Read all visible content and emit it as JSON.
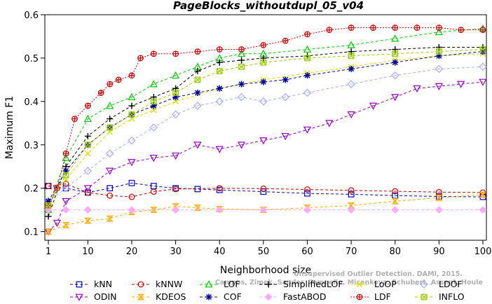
{
  "chart_data": {
    "type": "line",
    "title": "PageBlocks_withoutdupl_05_v04",
    "xlabel": "Neighborhood size",
    "ylabel": "Maximum F1",
    "xlim": [
      1,
      100
    ],
    "ylim": [
      0.08,
      0.6
    ],
    "xticks": [
      1,
      10,
      20,
      30,
      40,
      50,
      60,
      70,
      80,
      90,
      100
    ],
    "yticks": [
      0.1,
      0.2,
      0.3,
      0.4,
      0.5,
      0.6
    ],
    "grid": false,
    "legend_position": "bottom",
    "watermark_lines": [
      "Unsupervised Outlier Detection. DAMI, 2015.",
      "Campos, Zimek, Sander, Campello, Micenkova, Schubert, Assent, Houle"
    ],
    "series": [
      {
        "name": "kNN",
        "color": "#0000cc",
        "marker": "square",
        "dash": "4,3",
        "x": [
          1,
          5,
          10,
          15,
          20,
          25,
          30,
          35,
          40,
          50,
          60,
          70,
          80,
          90,
          100
        ],
        "y": [
          0.205,
          0.2,
          0.19,
          0.2,
          0.212,
          0.205,
          0.2,
          0.198,
          0.196,
          0.192,
          0.188,
          0.186,
          0.183,
          0.181,
          0.18
        ]
      },
      {
        "name": "kNNW",
        "color": "#cc0000",
        "marker": "circle",
        "dash": "4,3",
        "x": [
          1,
          5,
          10,
          15,
          20,
          25,
          30,
          40,
          50,
          60,
          70,
          80,
          90,
          100
        ],
        "y": [
          0.205,
          0.21,
          0.19,
          0.183,
          0.18,
          0.192,
          0.198,
          0.2,
          0.199,
          0.197,
          0.195,
          0.193,
          0.191,
          0.19
        ]
      },
      {
        "name": "LOF",
        "color": "#00cc00",
        "marker": "triangle-up",
        "dash": "4,3",
        "x": [
          1,
          5,
          10,
          15,
          20,
          25,
          30,
          35,
          40,
          45,
          50,
          60,
          70,
          80,
          90,
          100
        ],
        "y": [
          0.15,
          0.27,
          0.36,
          0.39,
          0.41,
          0.44,
          0.46,
          0.48,
          0.5,
          0.51,
          0.51,
          0.52,
          0.53,
          0.545,
          0.56,
          0.568
        ]
      },
      {
        "name": "SimplifiedLOF",
        "color": "#000000",
        "marker": "plus",
        "dash": "4,3",
        "x": [
          1,
          5,
          10,
          15,
          20,
          25,
          30,
          35,
          40,
          45,
          50,
          60,
          70,
          80,
          90,
          100
        ],
        "y": [
          0.135,
          0.25,
          0.32,
          0.36,
          0.39,
          0.41,
          0.43,
          0.47,
          0.49,
          0.495,
          0.5,
          0.505,
          0.515,
          0.52,
          0.525,
          0.525
        ]
      },
      {
        "name": "LoOP",
        "color": "#dddd00",
        "marker": "cross",
        "dash": "4,3",
        "x": [
          1,
          5,
          10,
          15,
          20,
          25,
          30,
          40,
          50,
          60,
          70,
          80,
          90,
          100
        ],
        "y": [
          0.17,
          0.22,
          0.28,
          0.33,
          0.36,
          0.38,
          0.4,
          0.43,
          0.45,
          0.465,
          0.48,
          0.495,
          0.505,
          0.51
        ]
      },
      {
        "name": "LDOF",
        "color": "#aaaaff",
        "marker": "diamond",
        "dash": "4,3",
        "x": [
          1,
          5,
          10,
          15,
          20,
          25,
          30,
          35,
          40,
          45,
          50,
          55,
          60,
          70,
          80,
          90,
          100
        ],
        "y": [
          0.17,
          0.2,
          0.24,
          0.28,
          0.31,
          0.34,
          0.37,
          0.39,
          0.4,
          0.41,
          0.4,
          0.41,
          0.42,
          0.44,
          0.46,
          0.475,
          0.48
        ]
      },
      {
        "name": "ODIN",
        "color": "#9900cc",
        "marker": "triangle-down",
        "dash": "4,3",
        "x": [
          1,
          3,
          5,
          10,
          15,
          20,
          25,
          30,
          35,
          40,
          45,
          50,
          55,
          60,
          65,
          70,
          75,
          80,
          85,
          90,
          95,
          100
        ],
        "y": [
          0.1,
          0.12,
          0.17,
          0.2,
          0.24,
          0.26,
          0.27,
          0.275,
          0.3,
          0.29,
          0.3,
          0.31,
          0.32,
          0.335,
          0.35,
          0.37,
          0.39,
          0.41,
          0.43,
          0.435,
          0.44,
          0.445
        ]
      },
      {
        "name": "KDEOS",
        "color": "#ffaa00",
        "marker": "hourglass",
        "dash": "4,3",
        "x": [
          1,
          5,
          10,
          15,
          20,
          25,
          30,
          35,
          40,
          50,
          60,
          70,
          80,
          90,
          100
        ],
        "y": [
          0.1,
          0.115,
          0.125,
          0.13,
          0.145,
          0.15,
          0.158,
          0.155,
          0.152,
          0.15,
          0.155,
          0.16,
          0.17,
          0.178,
          0.185
        ]
      },
      {
        "name": "COF",
        "color": "#000099",
        "marker": "asterisk",
        "dash": "4,3",
        "x": [
          1,
          5,
          10,
          15,
          20,
          25,
          30,
          35,
          40,
          45,
          50,
          55,
          60,
          70,
          80,
          90,
          100
        ],
        "y": [
          0.17,
          0.24,
          0.3,
          0.34,
          0.37,
          0.39,
          0.41,
          0.42,
          0.43,
          0.44,
          0.445,
          0.45,
          0.46,
          0.475,
          0.49,
          0.505,
          0.515
        ]
      },
      {
        "name": "FastABOD",
        "color": "#ffaaff",
        "marker": "diamond-filled",
        "dash": "4,3",
        "x": [
          1,
          5,
          10,
          20,
          30,
          40,
          50,
          60,
          70,
          80,
          90,
          100
        ],
        "y": [
          0.15,
          0.15,
          0.15,
          0.15,
          0.15,
          0.15,
          0.15,
          0.15,
          0.15,
          0.15,
          0.15,
          0.15
        ]
      },
      {
        "name": "LDF",
        "color": "#cc0000",
        "marker": "circle-plus",
        "dash": "2,2",
        "x": [
          1,
          3,
          5,
          7,
          10,
          13,
          15,
          17,
          20,
          22,
          25,
          30,
          35,
          40,
          45,
          50,
          55,
          60,
          65,
          70,
          75,
          80,
          85,
          90,
          95,
          100
        ],
        "y": [
          0.16,
          0.2,
          0.28,
          0.36,
          0.39,
          0.42,
          0.44,
          0.45,
          0.46,
          0.5,
          0.51,
          0.51,
          0.515,
          0.52,
          0.52,
          0.53,
          0.54,
          0.555,
          0.565,
          0.57,
          0.57,
          0.57,
          0.57,
          0.57,
          0.565,
          0.565
        ]
      },
      {
        "name": "INFLO",
        "color": "#99cc00",
        "marker": "square-cross",
        "dash": "4,3",
        "x": [
          1,
          5,
          10,
          15,
          20,
          25,
          30,
          35,
          40,
          45,
          50,
          60,
          70,
          80,
          90,
          100
        ],
        "y": [
          0.16,
          0.23,
          0.3,
          0.34,
          0.37,
          0.4,
          0.42,
          0.45,
          0.47,
          0.48,
          0.49,
          0.5,
          0.505,
          0.51,
          0.515,
          0.52
        ]
      }
    ]
  }
}
